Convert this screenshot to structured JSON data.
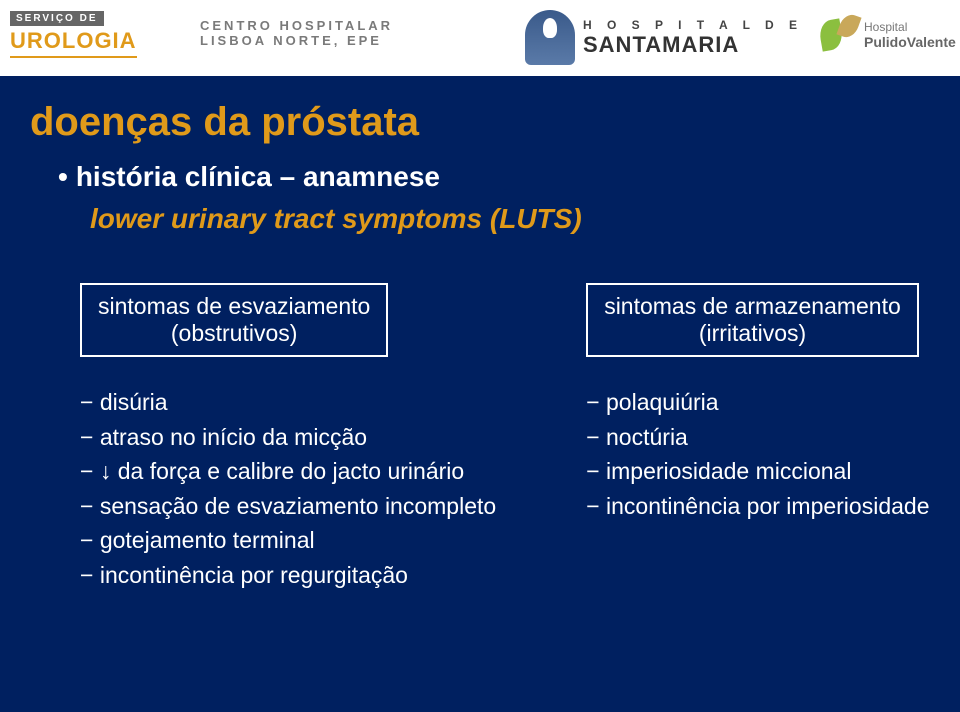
{
  "colors": {
    "background": "#002060",
    "accent": "#e09a1a",
    "text": "#ffffff",
    "box_border": "#ffffff"
  },
  "logos": {
    "urologia": {
      "line1": "SERVIÇO DE",
      "line2": "UROLOGIA"
    },
    "chln": {
      "line1": "CENTRO HOSPITALAR",
      "line2": "LISBOA NORTE, EPE"
    },
    "santamaria": {
      "line1": "H O S P I T A L  D E",
      "line2": "SANTAMARIA"
    },
    "pulido": {
      "line1": "Hospital",
      "line2": "PulidoValente"
    }
  },
  "title": "doenças da próstata",
  "subtitle": "história clínica – anamnese",
  "luts": "lower urinary tract symptoms (LUTS)",
  "left_box": {
    "l1": "sintomas de esvaziamento",
    "l2": "(obstrutivos)"
  },
  "right_box": {
    "l1": "sintomas de armazenamento",
    "l2": "(irritativos)"
  },
  "left_list": [
    "disúria",
    "atraso no início da micção",
    "↓ da força e calibre do jacto urinário",
    "sensação de esvaziamento incompleto",
    "gotejamento terminal",
    "incontinência por regurgitação"
  ],
  "right_list": [
    "polaquiúria",
    "noctúria",
    "imperiosidade miccional",
    "incontinência por imperiosidade"
  ]
}
